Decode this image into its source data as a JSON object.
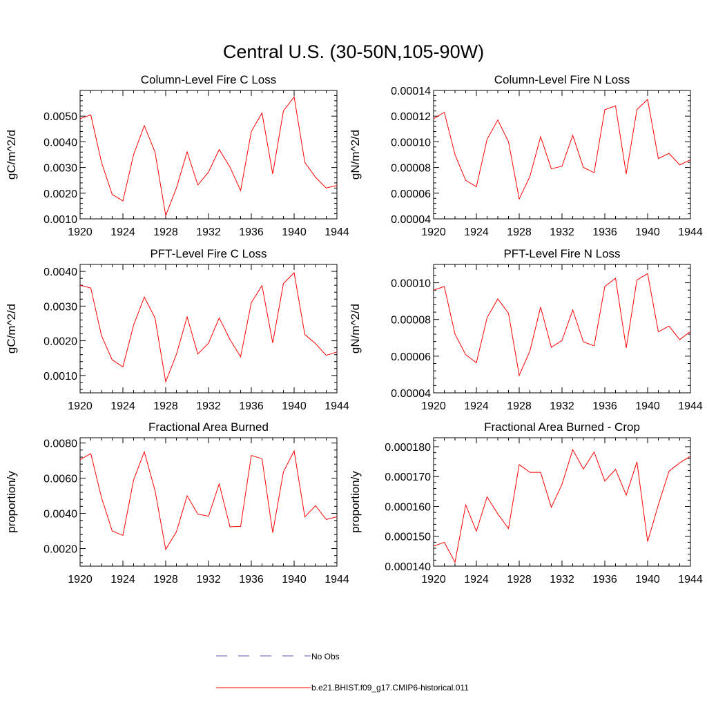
{
  "figure": {
    "title": "Central U.S. (30-50N,105-90W)",
    "legend": [
      {
        "label": "No Obs",
        "style": "dashed",
        "color": "#5a5aa8"
      },
      {
        "label": "b.e21.BHIST.f09_g17.CMIP6-historical.011",
        "style": "solid",
        "color": "#ff0000"
      }
    ]
  },
  "colors": {
    "series": "#ff0000",
    "obs": "#5a5aa8"
  },
  "chart_data": [
    {
      "type": "line",
      "title": "Column-Level Fire C Loss",
      "ylabel": "gC/m^2/d",
      "xlim": [
        1920,
        1944
      ],
      "ylim": [
        0.001,
        0.006
      ],
      "xticks": [
        "1920",
        "1924",
        "1928",
        "1932",
        "1936",
        "1940",
        "1944"
      ],
      "yticks": [
        "0.0010",
        "0.0020",
        "0.0030",
        "0.0040",
        "0.0050"
      ],
      "x": [
        1920,
        1921,
        1922,
        1923,
        1924,
        1925,
        1926,
        1927,
        1928,
        1929,
        1930,
        1931,
        1932,
        1933,
        1934,
        1935,
        1936,
        1937,
        1938,
        1939,
        1940,
        1941,
        1942,
        1943,
        1944
      ],
      "series": [
        {
          "name": "b.e21.BHIST.f09_g17.CMIP6-historical.011",
          "values": [
            0.0049,
            0.00505,
            0.0032,
            0.00195,
            0.0017,
            0.0035,
            0.00463,
            0.0036,
            0.00113,
            0.0022,
            0.00361,
            0.00232,
            0.00282,
            0.0037,
            0.00302,
            0.0021,
            0.0044,
            0.00512,
            0.00275,
            0.0052,
            0.00575,
            0.0032,
            0.00262,
            0.0022,
            0.0023
          ]
        }
      ]
    },
    {
      "type": "line",
      "title": "Column-Level Fire N Loss",
      "ylabel": "gN/m^2/d",
      "xlim": [
        1920,
        1944
      ],
      "ylim": [
        4e-05,
        0.00014
      ],
      "xticks": [
        "1920",
        "1924",
        "1928",
        "1932",
        "1936",
        "1940",
        "1944"
      ],
      "yticks": [
        "0.00004",
        "0.00006",
        "0.00008",
        "0.00010",
        "0.00012",
        "0.00014"
      ],
      "x": [
        1920,
        1921,
        1922,
        1923,
        1924,
        1925,
        1926,
        1927,
        1928,
        1929,
        1930,
        1931,
        1932,
        1933,
        1934,
        1935,
        1936,
        1937,
        1938,
        1939,
        1940,
        1941,
        1942,
        1943,
        1944
      ],
      "series": [
        {
          "name": "b.e21.BHIST.f09_g17.CMIP6-historical.011",
          "values": [
            0.000118,
            0.000123,
            9e-05,
            7e-05,
            6.5e-05,
            0.000102,
            0.000117,
            0.0001,
            5.55e-05,
            7.3e-05,
            0.000104,
            7.9e-05,
            8.1e-05,
            0.000105,
            8e-05,
            7.6e-05,
            0.000125,
            0.000128,
            7.5e-05,
            0.000125,
            0.000133,
            8.7e-05,
            9.1e-05,
            8.2e-05,
            8.6e-05
          ]
        }
      ]
    },
    {
      "type": "line",
      "title": "PFT-Level Fire C Loss",
      "ylabel": "gC/m^2/d",
      "xlim": [
        1920,
        1944
      ],
      "ylim": [
        0.0005,
        0.0042
      ],
      "xticks": [
        "1920",
        "1924",
        "1928",
        "1932",
        "1936",
        "1940",
        "1944"
      ],
      "yticks": [
        "0.0010",
        "0.0020",
        "0.0030",
        "0.0040"
      ],
      "x": [
        1920,
        1921,
        1922,
        1923,
        1924,
        1925,
        1926,
        1927,
        1928,
        1929,
        1930,
        1931,
        1932,
        1933,
        1934,
        1935,
        1936,
        1937,
        1938,
        1939,
        1940,
        1941,
        1942,
        1943,
        1944
      ],
      "series": [
        {
          "name": "b.e21.BHIST.f09_g17.CMIP6-historical.011",
          "values": [
            0.0036,
            0.00352,
            0.00215,
            0.00145,
            0.00125,
            0.00245,
            0.00326,
            0.00266,
            0.00082,
            0.00161,
            0.00269,
            0.00162,
            0.00193,
            0.00266,
            0.00204,
            0.00154,
            0.0031,
            0.00359,
            0.00194,
            0.00365,
            0.00396,
            0.00218,
            0.00192,
            0.00158,
            0.00168
          ]
        }
      ]
    },
    {
      "type": "line",
      "title": "PFT-Level Fire N Loss",
      "ylabel": "gN/m^2/d",
      "xlim": [
        1920,
        1944
      ],
      "ylim": [
        4e-05,
        0.00011
      ],
      "xticks": [
        "1920",
        "1924",
        "1928",
        "1932",
        "1936",
        "1940",
        "1944"
      ],
      "yticks": [
        "0.00004",
        "0.00006",
        "0.00008",
        "0.00010"
      ],
      "x": [
        1920,
        1921,
        1922,
        1923,
        1924,
        1925,
        1926,
        1927,
        1928,
        1929,
        1930,
        1931,
        1932,
        1933,
        1934,
        1935,
        1936,
        1937,
        1938,
        1939,
        1940,
        1941,
        1942,
        1943,
        1944
      ],
      "series": [
        {
          "name": "b.e21.BHIST.f09_g17.CMIP6-historical.011",
          "values": [
            9.6e-05,
            9.8e-05,
            7.2e-05,
            6.08e-05,
            5.64e-05,
            8.1e-05,
            9.12e-05,
            8.34e-05,
            4.95e-05,
            6.28e-05,
            8.68e-05,
            6.48e-05,
            6.86e-05,
            8.52e-05,
            6.78e-05,
            6.56e-05,
            9.8e-05,
            0.0001025,
            6.45e-05,
            0.0001015,
            0.000105,
            7.33e-05,
            7.64e-05,
            6.9e-05,
            7.35e-05
          ]
        }
      ]
    },
    {
      "type": "line",
      "title": "Fractional Area Burned",
      "ylabel": "proportion/y",
      "xlim": [
        1920,
        1944
      ],
      "ylim": [
        0.001,
        0.0083
      ],
      "xticks": [
        "1920",
        "1924",
        "1928",
        "1932",
        "1936",
        "1940",
        "1944"
      ],
      "yticks": [
        "0.0020",
        "0.0040",
        "0.0060",
        "0.0080"
      ],
      "x": [
        1920,
        1921,
        1922,
        1923,
        1924,
        1925,
        1926,
        1927,
        1928,
        1929,
        1930,
        1931,
        1932,
        1933,
        1934,
        1935,
        1936,
        1937,
        1938,
        1939,
        1940,
        1941,
        1942,
        1943,
        1944
      ],
      "series": [
        {
          "name": "b.e21.BHIST.f09_g17.CMIP6-historical.011",
          "values": [
            0.00705,
            0.0074,
            0.0049,
            0.003,
            0.00275,
            0.0059,
            0.0075,
            0.0053,
            0.00195,
            0.00295,
            0.005,
            0.00396,
            0.00384,
            0.00568,
            0.00324,
            0.00326,
            0.0073,
            0.0071,
            0.0029,
            0.00636,
            0.00755,
            0.0038,
            0.00444,
            0.00365,
            0.00381
          ]
        }
      ]
    },
    {
      "type": "line",
      "title": "Fractional Area Burned - Crop",
      "ylabel": "proportion/y",
      "xlim": [
        1920,
        1944
      ],
      "ylim": [
        0.00014,
        0.000183
      ],
      "xticks": [
        "1920",
        "1924",
        "1928",
        "1932",
        "1936",
        "1940",
        "1944"
      ],
      "yticks": [
        "0.000140",
        "0.000150",
        "0.000160",
        "0.000170",
        "0.000180"
      ],
      "x": [
        1920,
        1921,
        1922,
        1923,
        1924,
        1925,
        1926,
        1927,
        1928,
        1929,
        1930,
        1931,
        1932,
        1933,
        1934,
        1935,
        1936,
        1937,
        1938,
        1939,
        1940,
        1941,
        1942,
        1943,
        1944
      ],
      "series": [
        {
          "name": "b.e21.BHIST.f09_g17.CMIP6-historical.011",
          "values": [
            0.0001467,
            0.000148,
            0.0001413,
            0.0001605,
            0.0001517,
            0.0001632,
            0.0001575,
            0.0001526,
            0.000174,
            0.0001714,
            0.0001714,
            0.0001597,
            0.0001674,
            0.000179,
            0.0001725,
            0.0001782,
            0.0001685,
            0.0001724,
            0.0001638,
            0.0001749,
            0.0001482,
            0.0001605,
            0.0001718,
            0.0001746,
            0.0001768
          ]
        }
      ]
    }
  ]
}
